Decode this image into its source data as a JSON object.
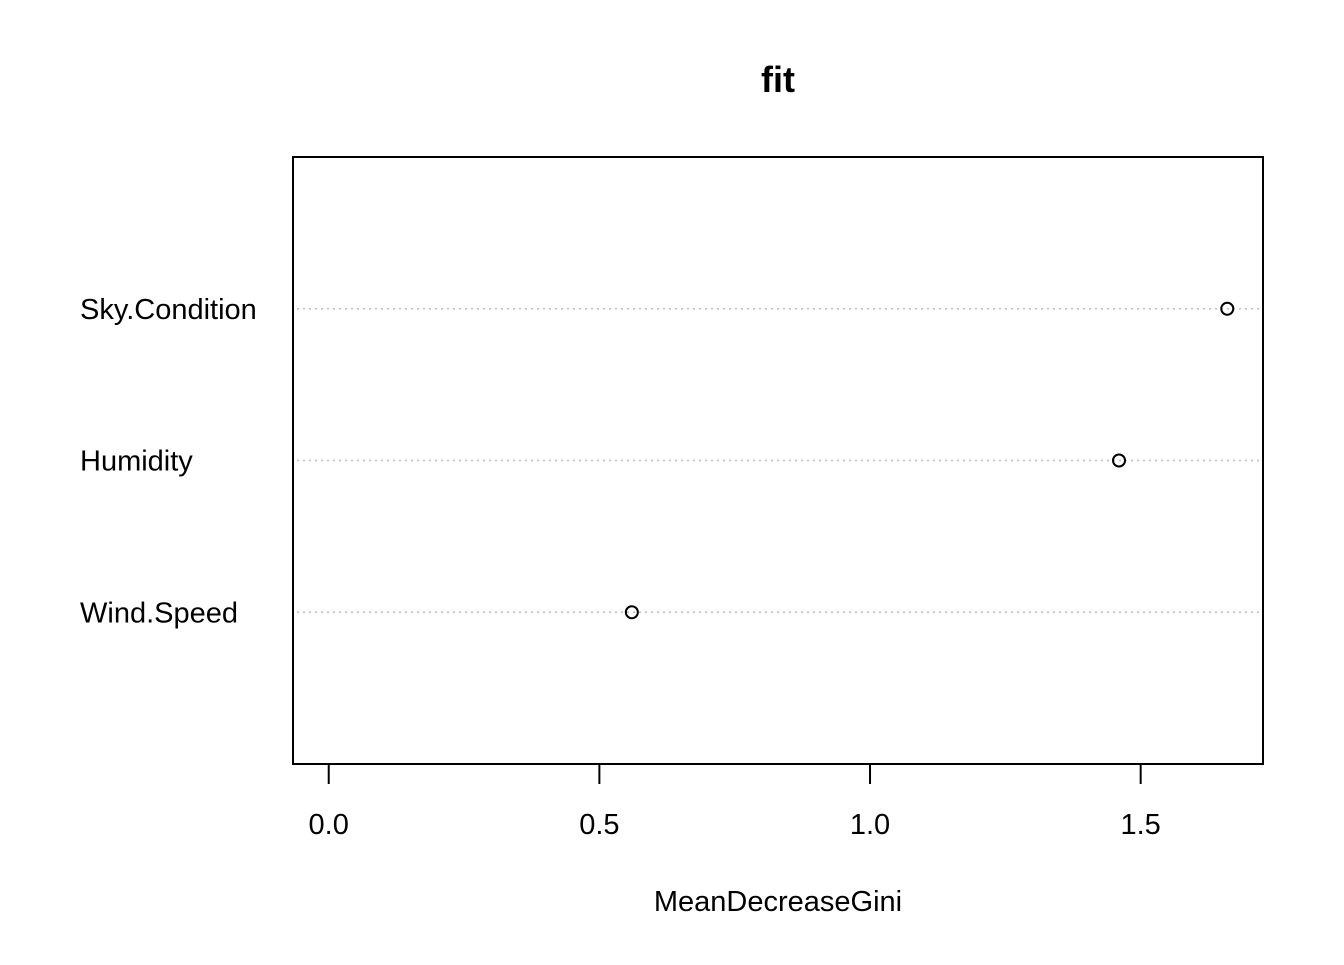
{
  "chart_data": {
    "type": "scatter",
    "title": "fit",
    "xlabel": "MeanDecreaseGini",
    "ylabel": "",
    "categories": [
      "Wind.Speed",
      "Humidity",
      "Sky.Condition"
    ],
    "values": [
      0.56,
      1.46,
      1.66
    ],
    "xticks": [
      "0.0",
      "0.5",
      "1.0",
      "1.5"
    ],
    "xtick_values": [
      0.0,
      0.5,
      1.0,
      1.5
    ],
    "xlim": [
      -0.066,
      1.726
    ],
    "grid": "dotted horizontal lines per category",
    "legend": "none",
    "colors": {
      "axis": "#000000",
      "grid": "#bebebe",
      "point": "#000000"
    }
  }
}
